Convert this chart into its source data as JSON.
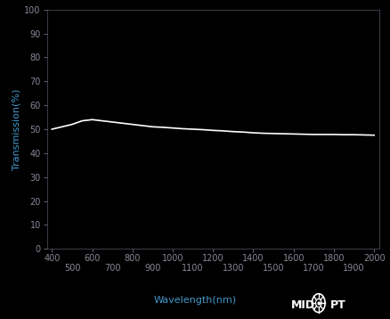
{
  "background_color": "#000000",
  "plot_bg_color": "#000000",
  "line_color": "#ffffff",
  "axis_label_color": "#4499cc",
  "tick_label_color": "#888899",
  "spine_color": "#555566",
  "xlabel": "Wavelength(nm)",
  "ylabel": "Transmission(%)",
  "xlim": [
    375,
    2025
  ],
  "ylim": [
    0,
    100
  ],
  "yticks": [
    0,
    10,
    20,
    30,
    40,
    50,
    60,
    70,
    80,
    90,
    100
  ],
  "xticks_major": [
    400,
    600,
    800,
    1000,
    1200,
    1400,
    1600,
    1800,
    2000
  ],
  "xticks_minor": [
    500,
    700,
    900,
    1100,
    1300,
    1500,
    1700,
    1900
  ],
  "wavelengths": [
    400,
    450,
    500,
    550,
    600,
    650,
    700,
    750,
    800,
    850,
    900,
    950,
    1000,
    1050,
    1100,
    1150,
    1200,
    1250,
    1300,
    1350,
    1400,
    1450,
    1500,
    1550,
    1600,
    1650,
    1700,
    1750,
    1800,
    1850,
    1900,
    1950,
    2000
  ],
  "transmission": [
    50,
    51,
    52,
    53.5,
    54,
    53.5,
    53,
    52.5,
    52,
    51.5,
    51,
    50.8,
    50.5,
    50.2,
    50.0,
    49.8,
    49.5,
    49.3,
    49.0,
    48.8,
    48.5,
    48.3,
    48.2,
    48.1,
    48.0,
    47.9,
    47.8,
    47.8,
    47.8,
    47.7,
    47.7,
    47.6,
    47.5
  ],
  "line_width": 1.2,
  "xlabel_fontsize": 8,
  "ylabel_fontsize": 8,
  "tick_fontsize": 7,
  "figsize": [
    4.39,
    3.58
  ],
  "dpi": 100,
  "midopt_fontsize": 9
}
